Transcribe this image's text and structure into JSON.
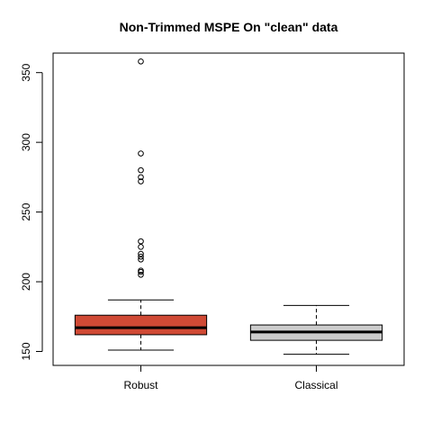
{
  "chart_data": {
    "type": "boxplot",
    "title": "Non-Trimmed MSPE On \"clean\" data",
    "xlabel": "",
    "ylabel": "",
    "categories": [
      "Robust",
      "Classical"
    ],
    "ylim": [
      140,
      364
    ],
    "yticks": [
      150,
      200,
      250,
      300,
      350
    ],
    "grid": false,
    "boxes": [
      {
        "name": "Robust",
        "fill": "#d04a35",
        "whisker_low": 151,
        "q1": 162,
        "median": 167,
        "q3": 176,
        "whisker_high": 187,
        "outliers": [
          205,
          207,
          208,
          216,
          218,
          220,
          225,
          229,
          272,
          275,
          280,
          292,
          358
        ]
      },
      {
        "name": "Classical",
        "fill": "#cccccc",
        "whisker_low": 148,
        "q1": 158,
        "median": 164,
        "q3": 169,
        "whisker_high": 183,
        "outliers": []
      }
    ]
  }
}
